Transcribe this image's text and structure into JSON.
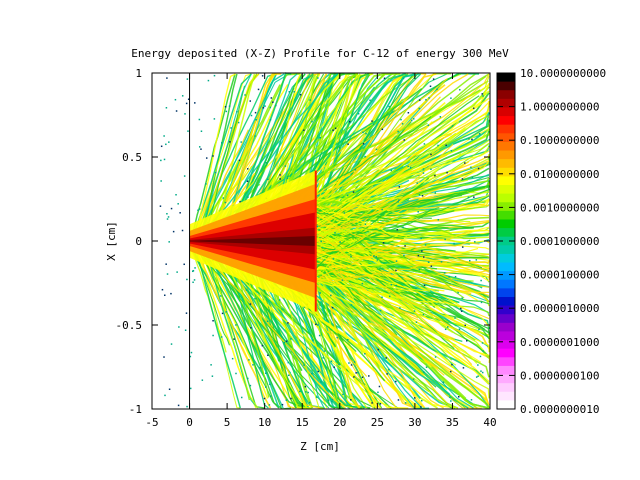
{
  "chart_data": {
    "type": "heatmap",
    "title": "Energy deposited (X-Z) Profile for C-12 of energy  300 MeV",
    "xlabel": "Z [cm]",
    "ylabel": "X [cm]",
    "xlim": [
      -5,
      40
    ],
    "ylim": [
      -1,
      1
    ],
    "x_ticks": [
      "-5",
      "0",
      "5",
      "10",
      "15",
      "20",
      "25",
      "30",
      "35",
      "40"
    ],
    "y_ticks": [
      "1",
      "0.5",
      "0",
      "-0.5",
      "-1"
    ],
    "colorbar": {
      "scale": "log",
      "range": [
        1e-09,
        10
      ],
      "tick_labels": [
        "10.0000000000",
        "1.0000000000",
        "0.1000000000",
        "0.0100000000",
        "0.0010000000",
        "0.0001000000",
        "0.0000100000",
        "0.0000010000",
        "0.0000001000",
        "0.0000000100",
        "0.0000000010"
      ],
      "colors": [
        "#000000",
        "#4a0000",
        "#8b0000",
        "#b00000",
        "#d80000",
        "#ff0000",
        "#ff3300",
        "#ff5500",
        "#ff7700",
        "#ff9900",
        "#ffbb00",
        "#ffdd00",
        "#ffff00",
        "#ddff00",
        "#bbff00",
        "#88ee00",
        "#44dd00",
        "#00cc00",
        "#00cc44",
        "#00cc88",
        "#00ccaa",
        "#00ccdd",
        "#00bbff",
        "#0099ff",
        "#0077ff",
        "#0044ee",
        "#0011cc",
        "#3300cc",
        "#6600cc",
        "#9900cc",
        "#bb00dd",
        "#dd00ee",
        "#ff00ff",
        "#ff44ff",
        "#ff88ff",
        "#ffaaff",
        "#ffccff",
        "#ffe6ff",
        "#ffffff"
      ]
    },
    "bragg_peak_z": 16.8,
    "beam_start_z": 0
  }
}
